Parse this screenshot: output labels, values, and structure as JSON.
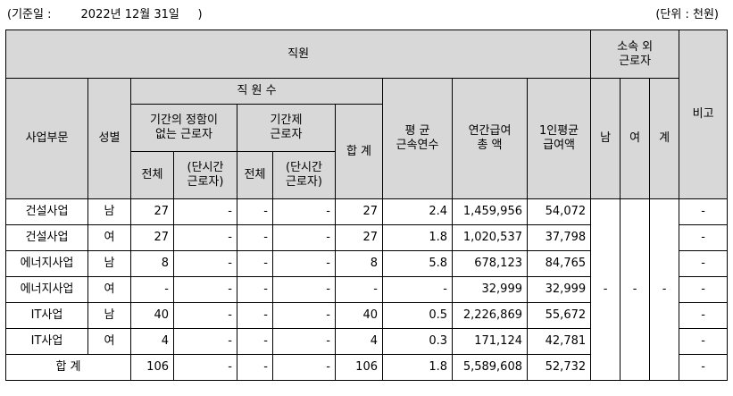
{
  "header": {
    "date_label": "(기준일 :        2022년 12월 31일     )",
    "unit_label": "(단위 : 천원)"
  },
  "columns": {
    "employees": "직원",
    "affiliated_outside": "소속 외\n근로자",
    "business": "사업부문",
    "gender": "성별",
    "headcount": "직 원 수",
    "permanent": "기간의 정함이\n없는 근로자",
    "fixed_term": "기간제\n근로자",
    "total": "전체",
    "part_time": "(단시간\n근로자)",
    "sum": "합 계",
    "avg_tenure": "평 균\n근속연수",
    "annual_pay": "연간급여\n총 액",
    "per_capita_pay": "1인평균\n급여액",
    "male": "남",
    "female": "여",
    "subtotal": "계",
    "remarks": "비고"
  },
  "rows": [
    {
      "business": "건설사업",
      "gender": "남",
      "perm_total": "27",
      "perm_part": "-",
      "fixed_total": "-",
      "fixed_part": "-",
      "sum": "27",
      "tenure": "2.4",
      "annual_pay": "1,459,956",
      "per_capita": "54,072",
      "remarks": "-"
    },
    {
      "business": "건설사업",
      "gender": "여",
      "perm_total": "27",
      "perm_part": "-",
      "fixed_total": "-",
      "fixed_part": "-",
      "sum": "27",
      "tenure": "1.8",
      "annual_pay": "1,020,537",
      "per_capita": "37,798",
      "remarks": "-"
    },
    {
      "business": "에너지사업",
      "gender": "남",
      "perm_total": "8",
      "perm_part": "-",
      "fixed_total": "-",
      "fixed_part": "-",
      "sum": "8",
      "tenure": "5.8",
      "annual_pay": "678,123",
      "per_capita": "84,765",
      "remarks": "-"
    },
    {
      "business": "에너지사업",
      "gender": "여",
      "perm_total": "-",
      "perm_part": "-",
      "fixed_total": "-",
      "fixed_part": "-",
      "sum": "-",
      "tenure": "-",
      "annual_pay": "32,999",
      "per_capita": "32,999",
      "remarks": "-"
    },
    {
      "business": "IT사업",
      "gender": "남",
      "perm_total": "40",
      "perm_part": "-",
      "fixed_total": "-",
      "fixed_part": "-",
      "sum": "40",
      "tenure": "0.5",
      "annual_pay": "2,226,869",
      "per_capita": "55,672",
      "remarks": "-"
    },
    {
      "business": "IT사업",
      "gender": "여",
      "perm_total": "4",
      "perm_part": "-",
      "fixed_total": "-",
      "fixed_part": "-",
      "sum": "4",
      "tenure": "0.3",
      "annual_pay": "171,124",
      "per_capita": "42,781",
      "remarks": "-"
    }
  ],
  "total_row": {
    "label": "합 계",
    "perm_total": "106",
    "perm_part": "-",
    "fixed_total": "-",
    "fixed_part": "-",
    "sum": "106",
    "tenure": "1.8",
    "annual_pay": "5,589,608",
    "per_capita": "52,732",
    "remarks": "-"
  },
  "outside_workers": {
    "male": "-",
    "female": "-",
    "subtotal": "-"
  }
}
